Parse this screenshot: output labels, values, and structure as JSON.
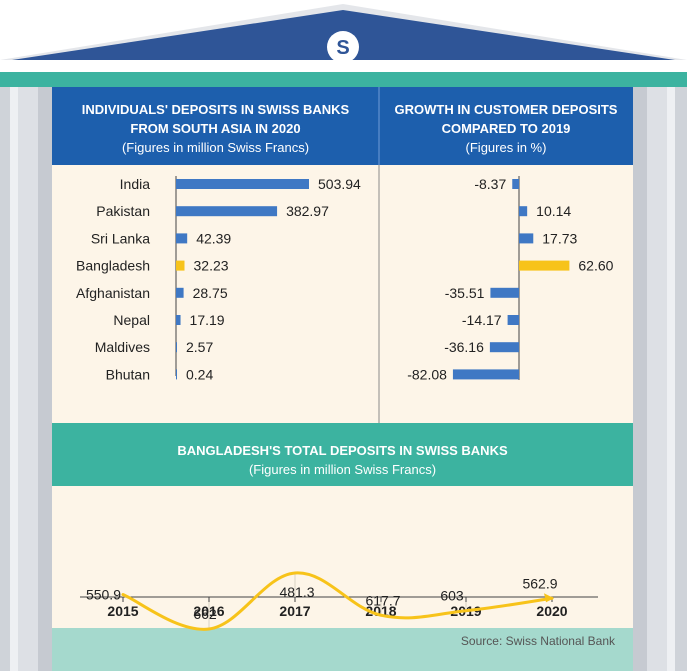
{
  "logo": {
    "letter": "S"
  },
  "panel_left": {
    "title_line1": "INDIVIDUALS' DEPOSITS IN SWISS BANKS",
    "title_line2": "FROM SOUTH ASIA IN 2020",
    "subtitle": "(Figures in million Swiss Francs)"
  },
  "panel_right": {
    "title_line1": "GROWTH IN CUSTOMER DEPOSITS",
    "title_line2": "COMPARED TO 2019",
    "subtitle": "(Figures in %)"
  },
  "panel_bottom": {
    "title": "BANGLADESH'S TOTAL DEPOSITS IN SWISS BANKS",
    "subtitle": "(Figures in million Swiss Francs)"
  },
  "source": "Source: Swiss National Bank",
  "colors": {
    "roof": "#2f5597",
    "teal": "#3cb3a0",
    "header_blue": "#1d5fad",
    "bar_blue": "#3f78c4",
    "highlight": "#f7c31a",
    "panel_bg": "#fdf5e8",
    "column": "#e4e6ea",
    "footer": "#a5d9cd"
  },
  "chart_data": [
    {
      "type": "bar",
      "orientation": "horizontal",
      "categories": [
        "India",
        "Pakistan",
        "Sri Lanka",
        "Bangladesh",
        "Afghanistan",
        "Nepal",
        "Maldives",
        "Bhutan"
      ],
      "values": [
        503.94,
        382.97,
        42.39,
        32.23,
        28.75,
        17.19,
        2.57,
        0.24
      ],
      "value_labels": [
        "503.94",
        "382.97",
        "42.39",
        "32.23",
        "28.75",
        "17.19",
        "2.57",
        "0.24"
      ],
      "highlight": "Bangladesh"
    },
    {
      "type": "bar",
      "orientation": "horizontal",
      "categories": [
        "India",
        "Pakistan",
        "Sri Lanka",
        "Bangladesh",
        "Afghanistan",
        "Nepal",
        "Maldives",
        "Bhutan"
      ],
      "values": [
        -8.37,
        10.14,
        17.73,
        62.6,
        -35.51,
        -14.17,
        -36.16,
        -82.08
      ],
      "value_labels": [
        "-8.37",
        "10.14",
        "17.73",
        "62.60",
        "-35.51",
        "-14.17",
        "-36.16",
        "-82.08"
      ],
      "highlight": "Bangladesh"
    },
    {
      "type": "line",
      "x": [
        "2015",
        "2016",
        "2017",
        "2018",
        "2019",
        "2020"
      ],
      "values": [
        550.9,
        662,
        481.3,
        617.7,
        603,
        562.9
      ],
      "value_labels": [
        "550.9",
        "662",
        "481.3",
        "617.7",
        "603",
        "562.9"
      ]
    }
  ]
}
